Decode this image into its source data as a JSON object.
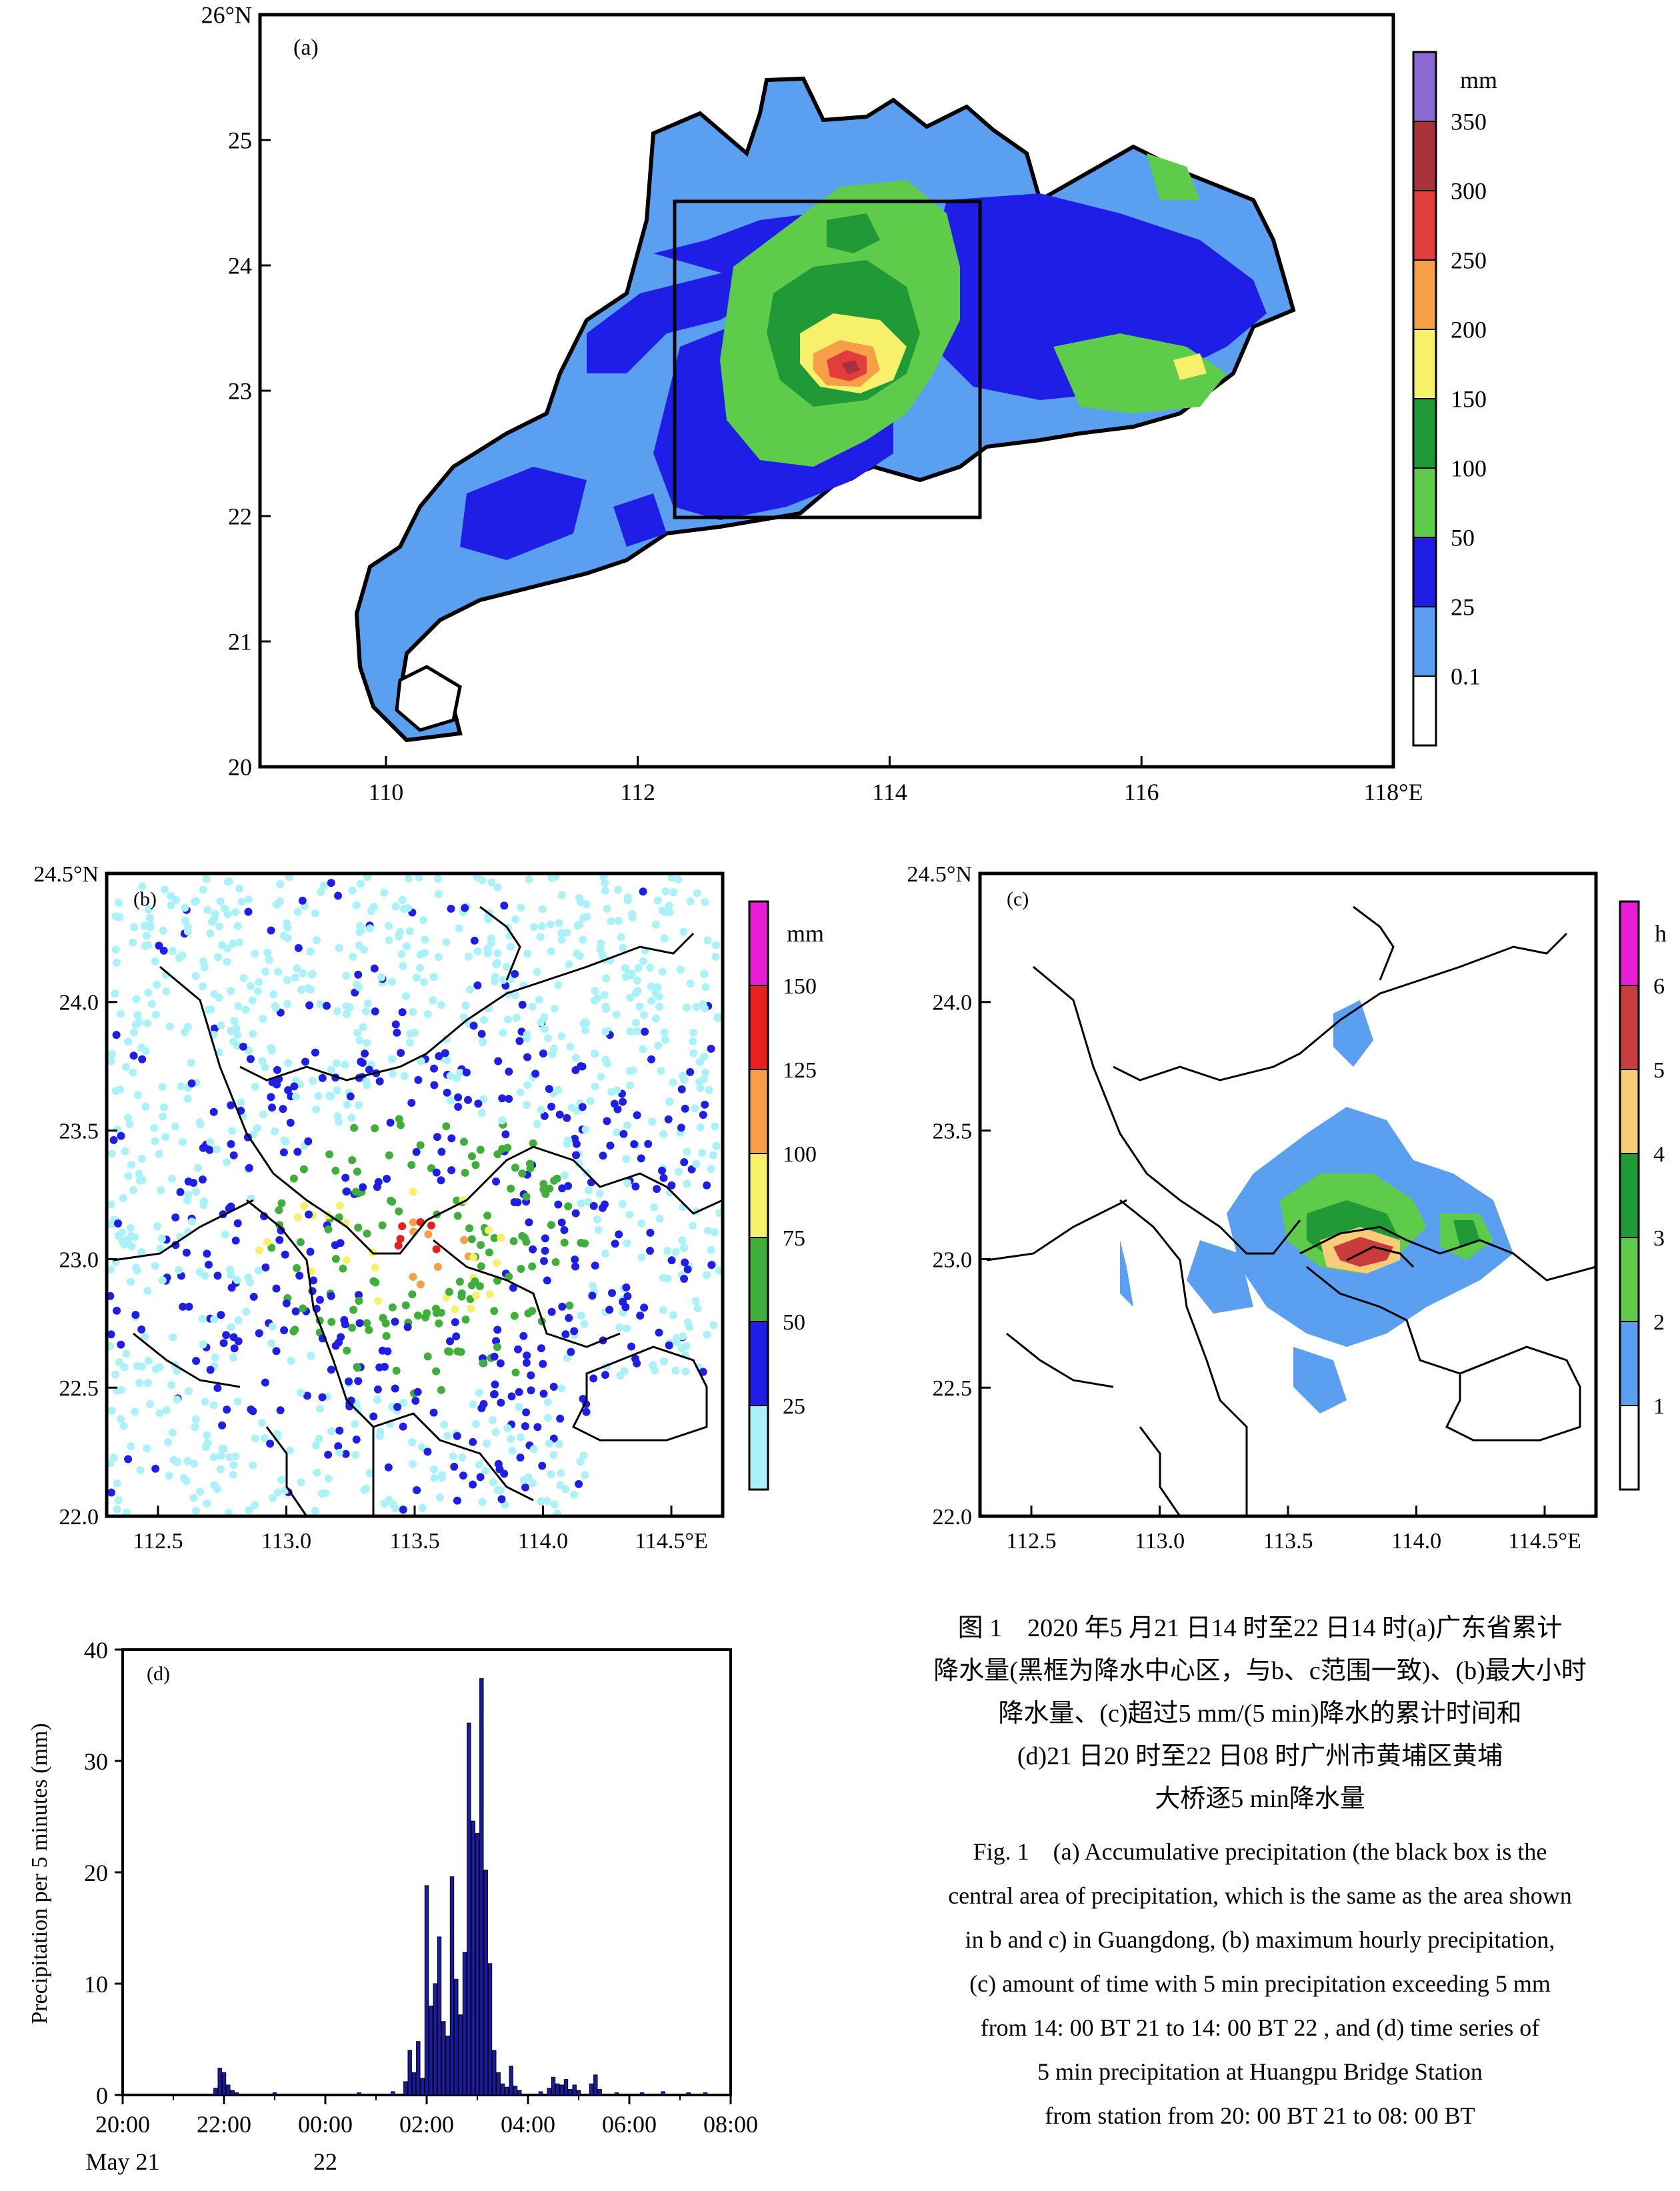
{
  "chart_data": [
    {
      "panel": "(a)",
      "type": "heatmap",
      "units_label": "mm",
      "x_ticks": [
        "110",
        "112",
        "114",
        "116",
        "118°E"
      ],
      "x_tick_values": [
        110,
        112,
        114,
        116,
        118
      ],
      "y_ticks": [
        "20",
        "21",
        "22",
        "23",
        "24",
        "25",
        "26°N"
      ],
      "y_tick_values": [
        20,
        21,
        22,
        23,
        24,
        25,
        26
      ],
      "xlim": [
        109,
        118
      ],
      "ylim": [
        20,
        26
      ],
      "colorbar_labels": [
        "0.1",
        "25",
        "50",
        "100",
        "150",
        "200",
        "250",
        "300",
        "350"
      ],
      "colorbar_colors": [
        "#ffffff",
        "#5b9ff0",
        "#1e1ee6",
        "#5fcb4a",
        "#1f9a36",
        "#f6f06a",
        "#f5a048",
        "#e23c3c",
        "#a8323a",
        "#8a6ad2"
      ],
      "box": {
        "lon": [
          112.3,
          114.7
        ],
        "lat": [
          22.0,
          24.5
        ]
      }
    },
    {
      "panel": "(b)",
      "type": "scatter",
      "units_label": "mm",
      "x_ticks": [
        "112.5",
        "113.0",
        "113.5",
        "114.0",
        "114.5°E"
      ],
      "x_tick_values": [
        112.5,
        113.0,
        113.5,
        114.0,
        114.5
      ],
      "y_ticks": [
        "22.0",
        "22.5",
        "23.0",
        "23.5",
        "24.0",
        "24.5°N"
      ],
      "y_tick_values": [
        22.0,
        22.5,
        23.0,
        23.5,
        24.0,
        24.5
      ],
      "xlim": [
        112.3,
        114.7
      ],
      "ylim": [
        22.0,
        24.5
      ],
      "colorbar_labels": [
        "25",
        "50",
        "75",
        "100",
        "125",
        "150"
      ],
      "colorbar_colors": [
        "#aaf2f8",
        "#1e1ee6",
        "#3fae3a",
        "#f6f06a",
        "#f5a048",
        "#e8201e",
        "#e81ed6"
      ]
    },
    {
      "panel": "(c)",
      "type": "heatmap",
      "units_label": "h",
      "x_ticks": [
        "112.5",
        "113.0",
        "113.5",
        "114.0",
        "114.5°E"
      ],
      "x_tick_values": [
        112.5,
        113.0,
        113.5,
        114.0,
        114.5
      ],
      "y_ticks": [
        "22.0",
        "22.5",
        "23.0",
        "23.5",
        "24.0",
        "24.5°N"
      ],
      "y_tick_values": [
        22.0,
        22.5,
        23.0,
        23.5,
        24.0,
        24.5
      ],
      "xlim": [
        112.3,
        114.7
      ],
      "ylim": [
        22.0,
        24.5
      ],
      "colorbar_labels": [
        "1",
        "2",
        "3",
        "4",
        "5",
        "6"
      ],
      "colorbar_colors": [
        "#ffffff",
        "#5b9ff0",
        "#5fcb4a",
        "#1f9a36",
        "#f8cc78",
        "#c83c3c",
        "#e81ed6"
      ]
    },
    {
      "panel": "(d)",
      "type": "bar",
      "ylabel": "Precipitation per 5 minutes (mm)",
      "x_ticks": [
        "20:00",
        "22:00",
        "00:00",
        "02:00",
        "04:00",
        "06:00",
        "08:00"
      ],
      "x_tick_sub": [
        "May  21",
        "",
        "22",
        "",
        "",
        "",
        ""
      ],
      "y_ticks": [
        "0",
        "10",
        "20",
        "30",
        "40"
      ],
      "ylim": [
        0,
        40
      ],
      "x_hours_since_20": [
        0,
        12
      ],
      "bars": [
        {
          "t": "21:50",
          "v": 0.6
        },
        {
          "t": "21:55",
          "v": 2.4
        },
        {
          "t": "22:00",
          "v": 2.0
        },
        {
          "t": "22:05",
          "v": 0.9
        },
        {
          "t": "22:10",
          "v": 0.4
        },
        {
          "t": "22:15",
          "v": 0.2
        },
        {
          "t": "23:00",
          "v": 0.2
        },
        {
          "t": "00:40",
          "v": 0.2
        },
        {
          "t": "01:20",
          "v": 0.3
        },
        {
          "t": "01:35",
          "v": 1.2
        },
        {
          "t": "01:40",
          "v": 4.0
        },
        {
          "t": "01:45",
          "v": 2.0
        },
        {
          "t": "01:50",
          "v": 4.8
        },
        {
          "t": "01:55",
          "v": 1.5
        },
        {
          "t": "02:00",
          "v": 18.8
        },
        {
          "t": "02:05",
          "v": 8.0
        },
        {
          "t": "02:10",
          "v": 10.0
        },
        {
          "t": "02:15",
          "v": 14.2
        },
        {
          "t": "02:20",
          "v": 6.6
        },
        {
          "t": "02:25",
          "v": 5.3
        },
        {
          "t": "02:30",
          "v": 19.6
        },
        {
          "t": "02:35",
          "v": 10.4
        },
        {
          "t": "02:40",
          "v": 7.2
        },
        {
          "t": "02:45",
          "v": 12.8
        },
        {
          "t": "02:50",
          "v": 33.4
        },
        {
          "t": "02:55",
          "v": 24.6
        },
        {
          "t": "03:00",
          "v": 23.5
        },
        {
          "t": "03:05",
          "v": 37.4
        },
        {
          "t": "03:10",
          "v": 20.2
        },
        {
          "t": "03:15",
          "v": 11.8
        },
        {
          "t": "03:20",
          "v": 4.0
        },
        {
          "t": "03:25",
          "v": 2.0
        },
        {
          "t": "03:30",
          "v": 1.0
        },
        {
          "t": "03:35",
          "v": 0.7
        },
        {
          "t": "03:40",
          "v": 2.6
        },
        {
          "t": "03:45",
          "v": 0.8
        },
        {
          "t": "03:50",
          "v": 0.4
        },
        {
          "t": "04:15",
          "v": 0.3
        },
        {
          "t": "04:25",
          "v": 0.6
        },
        {
          "t": "04:30",
          "v": 1.6
        },
        {
          "t": "04:35",
          "v": 1.0
        },
        {
          "t": "04:40",
          "v": 0.9
        },
        {
          "t": "04:45",
          "v": 1.4
        },
        {
          "t": "04:50",
          "v": 0.5
        },
        {
          "t": "04:55",
          "v": 0.9
        },
        {
          "t": "05:00",
          "v": 0.4
        },
        {
          "t": "05:15",
          "v": 1.0
        },
        {
          "t": "05:20",
          "v": 1.8
        },
        {
          "t": "05:25",
          "v": 0.5
        },
        {
          "t": "05:45",
          "v": 0.2
        },
        {
          "t": "06:15",
          "v": 0.2
        },
        {
          "t": "06:40",
          "v": 0.3
        },
        {
          "t": "07:10",
          "v": 0.2
        },
        {
          "t": "07:30",
          "v": 0.2
        }
      ],
      "bar_color": "#1a1aa6"
    }
  ],
  "caption_zh": [
    "图 1　2020 年5 月21 日14 时至22 日14 时(a)广东省累计",
    "降水量(黑框为降水中心区，与b、c范围一致)、(b)最大小时",
    "降水量、(c)超过5 mm/(5 min)降水的累计时间和",
    "(d)21 日20 时至22 日08 时广州市黄埔区黄埔",
    "大桥逐5 min降水量"
  ],
  "caption_en": [
    "Fig. 1　(a) Accumulative precipitation (the black box is the",
    "central area of precipitation, which is the same as the area shown",
    "in b and c) in Guangdong, (b) maximum hourly precipitation,",
    "(c) amount of time with 5 min precipitation exceeding 5 mm",
    "from 14: 00 BT 21 to 14: 00 BT 22 , and (d) time series of",
    "5 min precipitation at Huangpu Bridge Station",
    "from  station from 20: 00 BT 21 to 08: 00 BT"
  ]
}
